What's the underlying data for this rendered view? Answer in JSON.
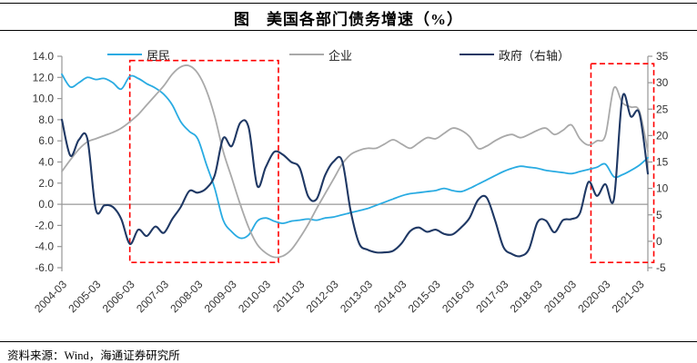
{
  "title": "图　美国各部门债务增速（%）",
  "source_note": "资料来源：Wind，海通证券研究所",
  "colors": {
    "resident_line": "#29ABE2",
    "enterprise_line": "#A9A9A9",
    "government_line": "#1F3864",
    "highlight_box": "#FF0000",
    "zero_line": "#7F7F7F",
    "axis": "#969696",
    "tick_text": "#333333"
  },
  "legend": [
    {
      "label": "居民",
      "color": "#29ABE2"
    },
    {
      "label": "企业",
      "color": "#A9A9A9"
    },
    {
      "label": "政府（右轴）",
      "color": "#1F3864"
    }
  ],
  "chart_data": {
    "type": "line",
    "frequency": "quarterly",
    "x_start": "2004-03",
    "x_end": "2021-06",
    "x_tick_labels": [
      "2004-03",
      "2005-03",
      "2006-03",
      "2007-03",
      "2008-03",
      "2009-03",
      "2010-03",
      "2011-03",
      "2012-03",
      "2013-03",
      "2014-03",
      "2015-03",
      "2016-03",
      "2017-03",
      "2018-03",
      "2019-03",
      "2020-03",
      "2021-03"
    ],
    "left_axis": {
      "min": -6,
      "max": 14,
      "step": 2,
      "tick_labels": [
        "14.0",
        "12.0",
        "10.0",
        "8.0",
        "6.0",
        "4.0",
        "2.0",
        "0.0",
        "-2.0",
        "-4.0",
        "-6.0"
      ]
    },
    "right_axis": {
      "min": -5,
      "max": 35,
      "step": 5,
      "tick_labels": [
        "35",
        "30",
        "25",
        "20",
        "15",
        "10",
        "5",
        "0",
        "-5"
      ]
    },
    "grid": "zero-line-only",
    "legend_position": "top",
    "series": [
      {
        "name": "居民",
        "axis": "left",
        "color": "#29ABE2",
        "width": 1.8,
        "values": [
          12.3,
          11.1,
          11.5,
          12.0,
          11.8,
          11.9,
          11.5,
          10.9,
          12.1,
          11.9,
          11.4,
          11.0,
          10.4,
          9.4,
          7.8,
          6.9,
          6.2,
          3.8,
          1.5,
          -1.5,
          -2.6,
          -3.2,
          -2.9,
          -1.6,
          -1.3,
          -1.6,
          -1.8,
          -1.6,
          -1.5,
          -1.4,
          -1.5,
          -1.3,
          -1.2,
          -1.0,
          -0.8,
          -0.6,
          -0.4,
          -0.1,
          0.2,
          0.5,
          0.8,
          1.0,
          1.1,
          1.2,
          1.3,
          1.5,
          1.3,
          1.2,
          1.5,
          1.9,
          2.3,
          2.7,
          3.1,
          3.4,
          3.6,
          3.5,
          3.4,
          3.2,
          3.1,
          3.0,
          2.9,
          3.1,
          3.3,
          3.5,
          3.8,
          2.6,
          2.8,
          3.2,
          3.7,
          4.4
        ]
      },
      {
        "name": "企业",
        "axis": "left",
        "color": "#A9A9A9",
        "width": 1.8,
        "values": [
          3.1,
          4.2,
          5.2,
          5.9,
          6.2,
          6.5,
          6.8,
          7.2,
          7.8,
          8.5,
          9.4,
          10.3,
          11.2,
          12.3,
          13.0,
          13.1,
          12.4,
          10.8,
          8.3,
          5.0,
          2.5,
          0.0,
          -2.2,
          -3.8,
          -4.6,
          -5.0,
          -4.9,
          -4.3,
          -3.2,
          -1.9,
          -0.4,
          1.0,
          2.4,
          3.8,
          4.7,
          5.1,
          5.3,
          5.3,
          5.7,
          6.1,
          5.7,
          5.3,
          5.8,
          6.3,
          6.2,
          6.7,
          7.2,
          7.0,
          6.4,
          5.3,
          5.5,
          6.0,
          6.4,
          6.6,
          6.3,
          6.6,
          7.0,
          7.2,
          6.6,
          7.0,
          7.5,
          6.2,
          5.6,
          6.0,
          6.5,
          11.0,
          9.6,
          9.2,
          8.8,
          5.0
        ]
      },
      {
        "name": "政府（右轴）",
        "axis": "right",
        "color": "#1F3864",
        "width": 2.1,
        "values": [
          23.0,
          16.2,
          19.2,
          19.4,
          6.0,
          6.8,
          6.5,
          4.2,
          -0.5,
          2.2,
          1.0,
          2.8,
          1.6,
          4.2,
          6.5,
          9.5,
          9.2,
          10.0,
          12.5,
          19.5,
          18.0,
          22.4,
          21.5,
          10.5,
          14.0,
          16.9,
          16.4,
          15.0,
          13.9,
          8.5,
          8.0,
          12.5,
          15.1,
          15.2,
          5.8,
          -0.4,
          -1.6,
          -2.1,
          -2.1,
          -1.8,
          -0.4,
          1.9,
          2.6,
          1.8,
          2.2,
          1.4,
          1.3,
          2.6,
          4.4,
          7.8,
          8.3,
          4.0,
          -1.1,
          -2.4,
          -2.8,
          -1.5,
          3.6,
          3.9,
          1.7,
          4.0,
          4.2,
          5.3,
          11.2,
          8.6,
          10.8,
          8.0,
          27.2,
          23.6,
          24.2,
          12.8
        ]
      }
    ],
    "highlight_boxes": [
      {
        "from_index": 8.0,
        "to_index": 25.5,
        "top_left_value": 13.6,
        "bottom_left_value": -5.5
      },
      {
        "from_index": 62.3,
        "to_index": 69.7,
        "top_left_value": 13.3,
        "bottom_left_value": -5.5
      }
    ]
  }
}
